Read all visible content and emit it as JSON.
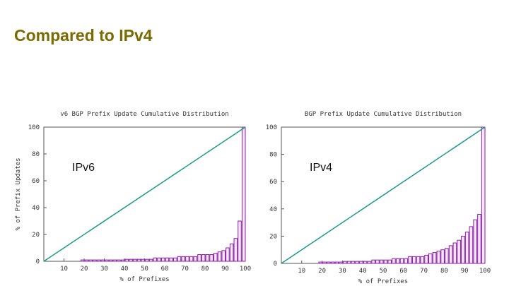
{
  "title": "Compared to IPv4",
  "chart_data": [
    {
      "type": "bar",
      "title": "v6 BGP Prefix Update Cumulative Distribution",
      "xlabel": "% of Prefixes",
      "ylabel": "% of Prefix Updates",
      "annotation": "IPv6",
      "x": [
        20,
        22,
        24,
        26,
        28,
        30,
        32,
        34,
        36,
        38,
        40,
        42,
        44,
        46,
        48,
        50,
        52,
        54,
        56,
        58,
        60,
        62,
        64,
        66,
        68,
        70,
        72,
        74,
        76,
        78,
        80,
        82,
        84,
        86,
        88,
        90,
        92,
        94,
        96,
        98,
        100
      ],
      "values": [
        1,
        1,
        1,
        1,
        1,
        1,
        1,
        1,
        1,
        1,
        1,
        1.5,
        1.5,
        1.5,
        1.5,
        1.5,
        1.5,
        1.5,
        2.5,
        2.5,
        2.5,
        2.5,
        2.5,
        2.5,
        3.5,
        3.5,
        3.5,
        3.5,
        3.5,
        5,
        5,
        5,
        5,
        6,
        7,
        8,
        10,
        13,
        17,
        30,
        100
      ],
      "color": "#8b1fa8",
      "diagonal": {
        "x": [
          0,
          100
        ],
        "y": [
          0,
          100
        ],
        "color": "#1a9a8a"
      },
      "xlim": [
        0,
        100
      ],
      "ylim": [
        0,
        100
      ],
      "xticks": [
        10,
        20,
        30,
        40,
        50,
        60,
        70,
        80,
        90,
        100
      ],
      "yticks": [
        0,
        20,
        40,
        60,
        80,
        100
      ]
    },
    {
      "type": "bar",
      "title": "BGP Prefix Update Cumulative Distribution",
      "xlabel": "% of Prefixes",
      "annotation": "IPv4",
      "x": [
        20,
        22,
        24,
        26,
        28,
        30,
        32,
        34,
        36,
        38,
        40,
        42,
        44,
        46,
        48,
        50,
        52,
        54,
        56,
        58,
        60,
        62,
        64,
        66,
        68,
        70,
        72,
        74,
        76,
        78,
        80,
        82,
        84,
        86,
        88,
        90,
        92,
        94,
        96,
        98,
        100
      ],
      "values": [
        1,
        1,
        1,
        1,
        1,
        1,
        1.5,
        1.5,
        1.5,
        1.5,
        1.5,
        1.5,
        1.5,
        2.5,
        2.5,
        2.5,
        2.5,
        2.5,
        3.5,
        3.5,
        3.5,
        3.5,
        5,
        5,
        5,
        5,
        6,
        7,
        8,
        9,
        10,
        11,
        13,
        15,
        17,
        20,
        23,
        27,
        32,
        36,
        100
      ],
      "color": "#8b1fa8",
      "diagonal": {
        "x": [
          0,
          100
        ],
        "y": [
          0,
          100
        ],
        "color": "#1a9a8a"
      },
      "xlim": [
        0,
        100
      ],
      "ylim": [
        0,
        100
      ],
      "xticks": [
        10,
        20,
        30,
        40,
        50,
        60,
        70,
        80,
        90,
        100
      ],
      "yticks": [
        0,
        20,
        40,
        60,
        80,
        100
      ]
    }
  ]
}
